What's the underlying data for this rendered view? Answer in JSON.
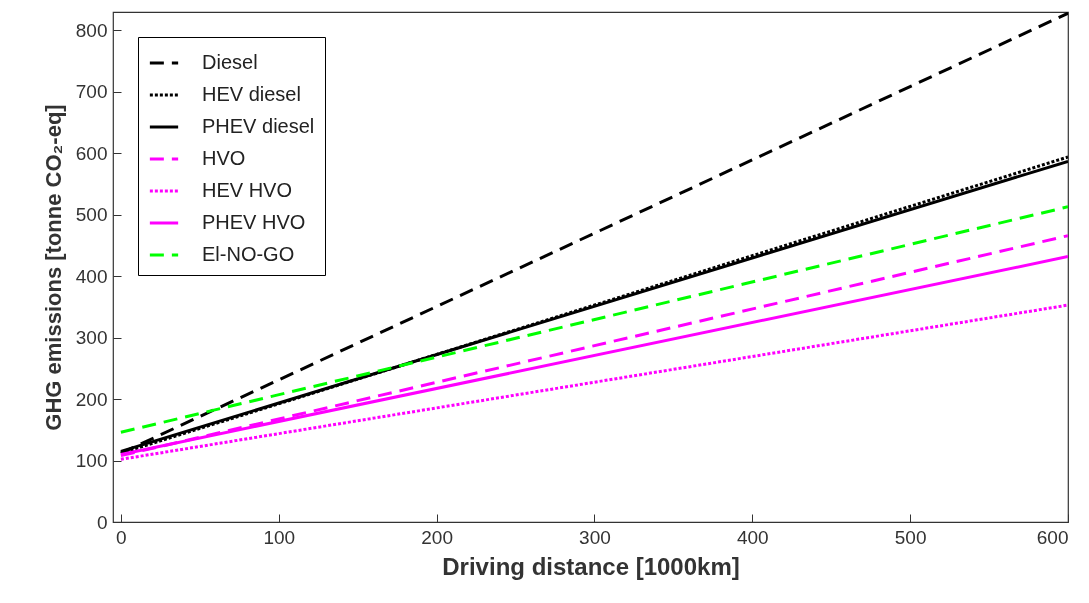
{
  "chart_data": {
    "type": "line",
    "xlabel": "Driving distance [1000km]",
    "ylabel": "GHG emissions [tonne CO₂-eq]",
    "x": [
      0,
      600
    ],
    "xlim": [
      -5,
      600
    ],
    "xticks": [
      0,
      100,
      200,
      300,
      400,
      500,
      600
    ],
    "ylim": [
      0,
      830
    ],
    "yticks": [
      0,
      100,
      200,
      300,
      400,
      500,
      600,
      700,
      800
    ],
    "grid": false,
    "legend": "top left",
    "marker": "none",
    "series": [
      {
        "name": "Diesel",
        "color": "#000000",
        "line_style": "dashed",
        "values": [
          112,
          828
        ]
      },
      {
        "name": "HEV diesel",
        "color": "#000000",
        "line_style": "dotted",
        "values": [
          112,
          594
        ]
      },
      {
        "name": "PHEV diesel",
        "color": "#000000",
        "line_style": "solid",
        "values": [
          115,
          587
        ]
      },
      {
        "name": "HVO",
        "color": "#ff00ff",
        "line_style": "dashed",
        "values": [
          108,
          466
        ]
      },
      {
        "name": "HEV HVO",
        "color": "#ff00ff",
        "line_style": "dotted",
        "values": [
          102,
          353
        ]
      },
      {
        "name": "PHEV HVO",
        "color": "#ff00ff",
        "line_style": "solid",
        "values": [
          110,
          432
        ]
      },
      {
        "name": "El-NO-GO",
        "color": "#00ff00",
        "line_style": "dashed",
        "values": [
          146,
          513
        ]
      }
    ]
  }
}
